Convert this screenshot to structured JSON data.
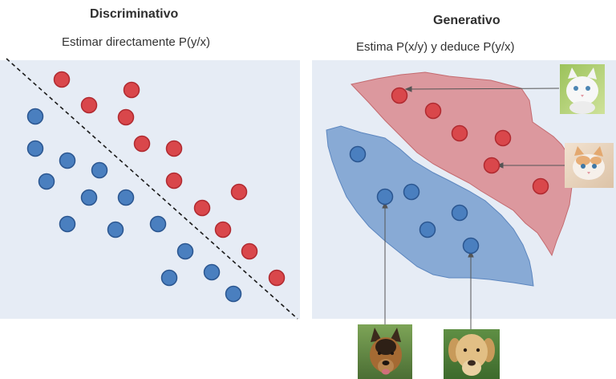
{
  "left_panel": {
    "title": "Discriminativo",
    "subtitle": "Estimar directamente P(y/x)"
  },
  "right_panel": {
    "title": "Generativo",
    "subtitle": "Estima P(x/y) y deduce P(y/x)"
  },
  "colors": {
    "panel_background": "#e6ecf5",
    "red_point": "#d9474b",
    "blue_point": "#4a7fbf",
    "red_region": "#d98a8e",
    "blue_region": "#7da3d2"
  },
  "images": {
    "cat_top": "cat-photo",
    "cat_middle": "kitten-photo",
    "dog_left": "german-shepherd-photo",
    "dog_right": "labrador-photo"
  }
}
